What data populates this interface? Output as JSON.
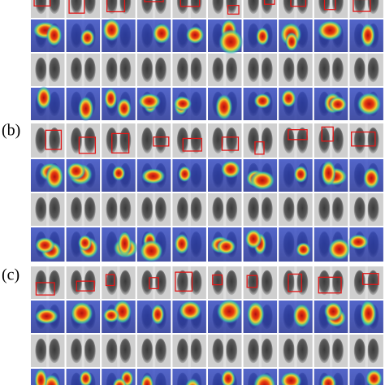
{
  "panels": [
    {
      "label": "(b)"
    },
    {
      "label": "(c)"
    }
  ]
}
